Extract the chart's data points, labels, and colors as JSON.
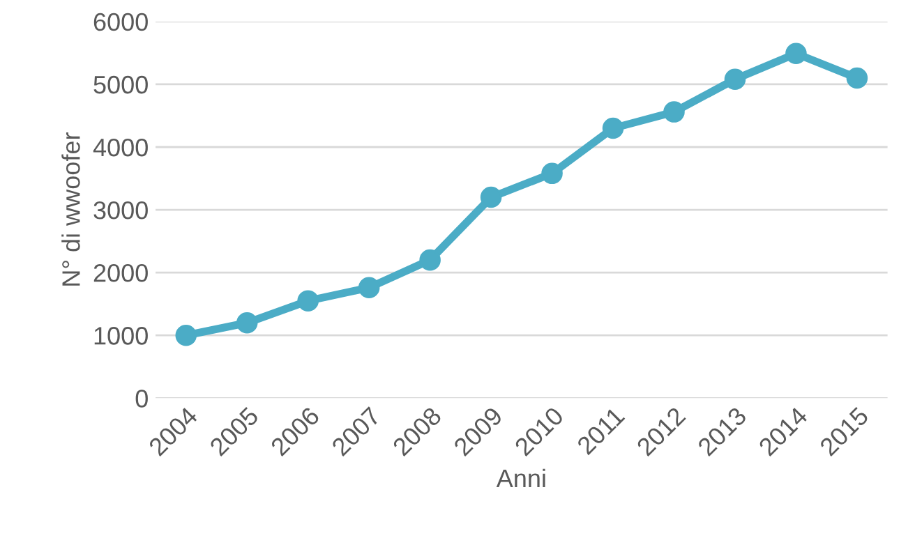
{
  "chart_data": {
    "type": "line",
    "xlabel": "Anni",
    "ylabel": "N° di wwoofer",
    "categories": [
      "2004",
      "2005",
      "2006",
      "2007",
      "2008",
      "2009",
      "2010",
      "2011",
      "2012",
      "2013",
      "2014",
      "2015"
    ],
    "series": [
      {
        "color": "#4bacc6",
        "values": [
          1000,
          1200,
          1550,
          1760,
          2200,
          3200,
          3580,
          4300,
          4560,
          5080,
          5490,
          5100
        ]
      }
    ],
    "ylim": [
      0,
      6000
    ],
    "yticks": [
      0,
      1000,
      2000,
      3000,
      4000,
      5000,
      6000
    ],
    "grid": "y",
    "marker": "circle",
    "line_style": "solid",
    "legend": false
  }
}
